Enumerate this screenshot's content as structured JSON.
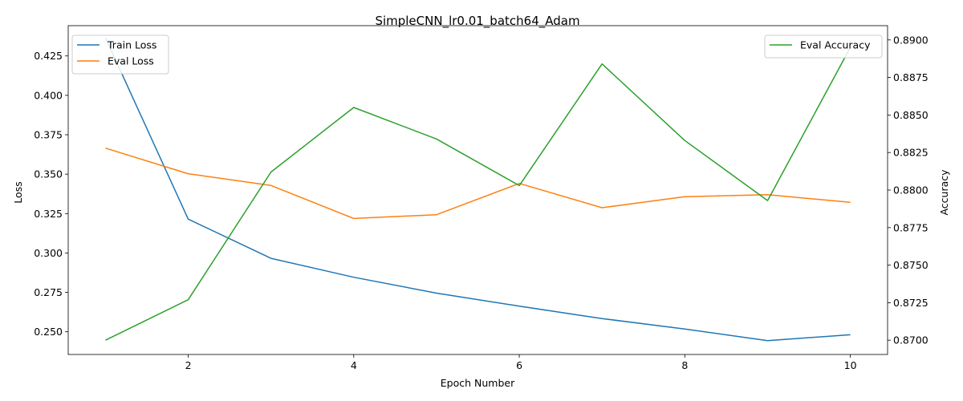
{
  "chart_data": {
    "type": "line",
    "title": "SimpleCNN_lr0.01_batch64_Adam",
    "xlabel": "Epoch Number",
    "ylabel_left": "Loss",
    "ylabel_right": "Accuracy",
    "x": [
      1,
      2,
      3,
      4,
      5,
      6,
      7,
      8,
      9,
      10
    ],
    "x_ticks": [
      2,
      4,
      6,
      8,
      10
    ],
    "xlim": [
      0.55,
      10.45
    ],
    "ylim_left": [
      0.2356,
      0.4442
    ],
    "ylim_right": [
      0.86905,
      0.89095
    ],
    "y_ticks_left": [
      "0.250",
      "0.275",
      "0.300",
      "0.325",
      "0.350",
      "0.375",
      "0.400",
      "0.425"
    ],
    "y_ticks_right": [
      "0.8700",
      "0.8725",
      "0.8750",
      "0.8775",
      "0.8800",
      "0.8825",
      "0.8850",
      "0.8875",
      "0.8900"
    ],
    "series": [
      {
        "name": "Train Loss",
        "axis": "left",
        "color": "#1f77b4",
        "values": [
          0.4365,
          0.3215,
          0.2966,
          0.2846,
          0.2745,
          0.2663,
          0.2584,
          0.2518,
          0.2444,
          0.2481
        ]
      },
      {
        "name": "Eval Loss",
        "axis": "left",
        "color": "#ff7f0e",
        "values": [
          0.3665,
          0.3503,
          0.3428,
          0.3219,
          0.3243,
          0.3441,
          0.3287,
          0.3357,
          0.337,
          0.3321
        ]
      },
      {
        "name": "Eval Accuracy",
        "axis": "right",
        "color": "#2ca02c",
        "values": [
          0.87,
          0.8727,
          0.8812,
          0.8855,
          0.8834,
          0.8803,
          0.8884,
          0.8833,
          0.8793,
          0.8895
        ]
      }
    ],
    "legend_left": [
      "Train Loss",
      "Eval Loss"
    ],
    "legend_right": [
      "Eval Accuracy"
    ],
    "grid": false
  }
}
